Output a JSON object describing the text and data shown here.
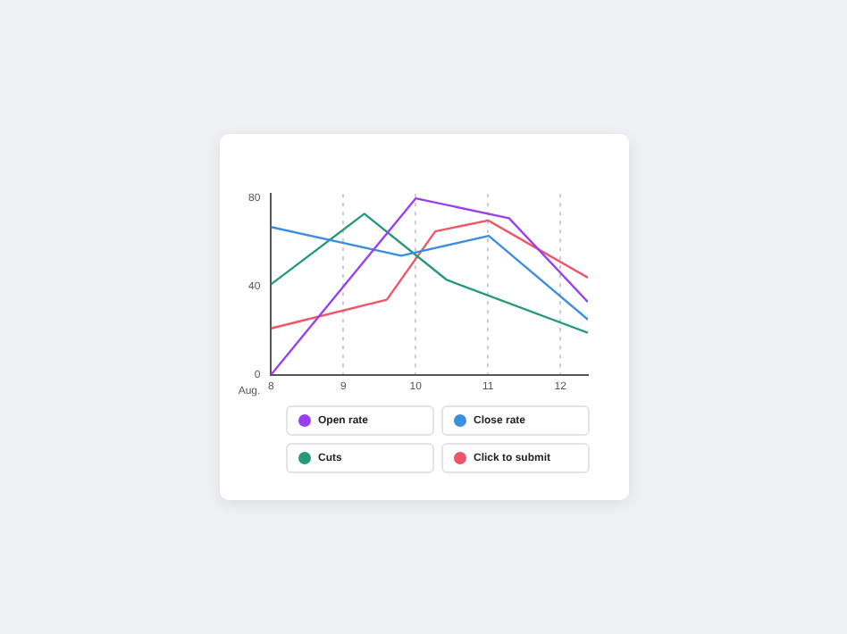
{
  "chart_data": {
    "type": "line",
    "xlabel": "Aug.",
    "xlim": [
      8,
      12.38
    ],
    "xticks": [
      8,
      9,
      10,
      11,
      12
    ],
    "ylim": [
      0,
      82
    ],
    "yticks": [
      0,
      40,
      80
    ],
    "grid": "x",
    "legend": "bottom",
    "marker": "none",
    "line_style": "solid",
    "series": [
      {
        "name": "Open rate",
        "color": "#9a3ff0",
        "x": [
          8,
          10,
          11.29,
          12.38
        ],
        "values": [
          0,
          80,
          71,
          33
        ]
      },
      {
        "name": "Close rate",
        "color": "#3c8ee0",
        "x": [
          8,
          9.8,
          11.01,
          12.38
        ],
        "values": [
          67,
          54,
          63,
          25
        ]
      },
      {
        "name": "Cuts",
        "color": "#26997a",
        "x": [
          8,
          9.29,
          10.43,
          12.38
        ],
        "values": [
          41,
          73,
          43,
          19
        ]
      },
      {
        "name": "Click to submit",
        "color": "#ee5566",
        "x": [
          8,
          9.6,
          10.27,
          11,
          12.38
        ],
        "values": [
          21,
          34,
          65,
          70,
          44
        ]
      }
    ]
  }
}
